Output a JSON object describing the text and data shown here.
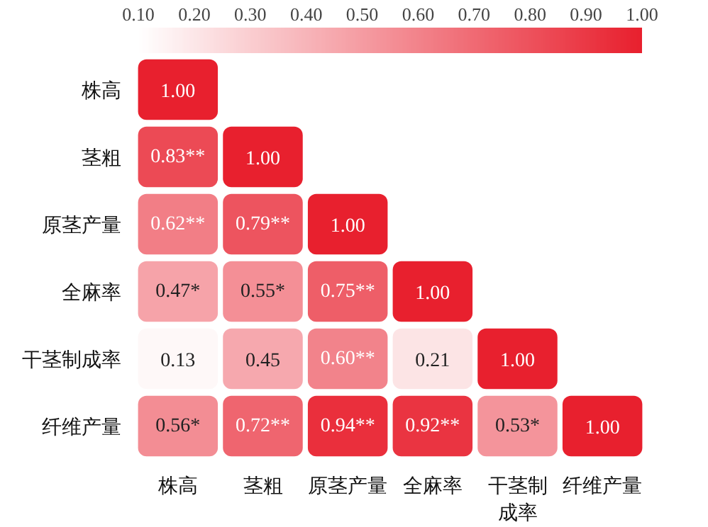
{
  "chart_data": {
    "type": "heatmap",
    "categories": [
      "株高",
      "茎粗",
      "原茎产量",
      "全麻率",
      "干茎制成率",
      "纤维产量"
    ],
    "y_categories": [
      "株高",
      "茎粗",
      "原茎产量",
      "全麻率",
      "干茎制成率",
      "纤维产量"
    ],
    "cells": [
      [
        1.0,
        null,
        null,
        null,
        null,
        null
      ],
      [
        0.83,
        1.0,
        null,
        null,
        null,
        null
      ],
      [
        0.62,
        0.79,
        1.0,
        null,
        null,
        null
      ],
      [
        0.47,
        0.55,
        0.75,
        1.0,
        null,
        null
      ],
      [
        0.13,
        0.45,
        0.6,
        0.21,
        1.0,
        null
      ],
      [
        0.56,
        0.72,
        0.94,
        0.92,
        0.53,
        1.0
      ]
    ],
    "cell_labels": [
      [
        "1.00",
        null,
        null,
        null,
        null,
        null
      ],
      [
        "0.83**",
        "1.00",
        null,
        null,
        null,
        null
      ],
      [
        "0.62**",
        "0.79**",
        "1.00",
        null,
        null,
        null
      ],
      [
        "0.47*",
        "0.55*",
        "0.75**",
        "1.00",
        null,
        null
      ],
      [
        "0.13",
        "0.45",
        "0.60**",
        "0.21",
        "1.00",
        null
      ],
      [
        "0.56*",
        "0.72**",
        "0.94**",
        "0.92**",
        "0.53*",
        "1.00"
      ]
    ],
    "clim": [
      0.1,
      1.0
    ],
    "cticks": [
      {
        "value": 0.1,
        "label": "0.10"
      },
      {
        "value": 0.2,
        "label": "0.20"
      },
      {
        "value": 0.3,
        "label": "0.30"
      },
      {
        "value": 0.4,
        "label": "0.40"
      },
      {
        "value": 0.5,
        "label": "0.50"
      },
      {
        "value": 0.6,
        "label": "0.60"
      },
      {
        "value": 0.7,
        "label": "0.70"
      },
      {
        "value": 0.8,
        "label": "0.80"
      },
      {
        "value": 0.9,
        "label": "0.90"
      },
      {
        "value": 1.0,
        "label": "1.00"
      }
    ]
  }
}
